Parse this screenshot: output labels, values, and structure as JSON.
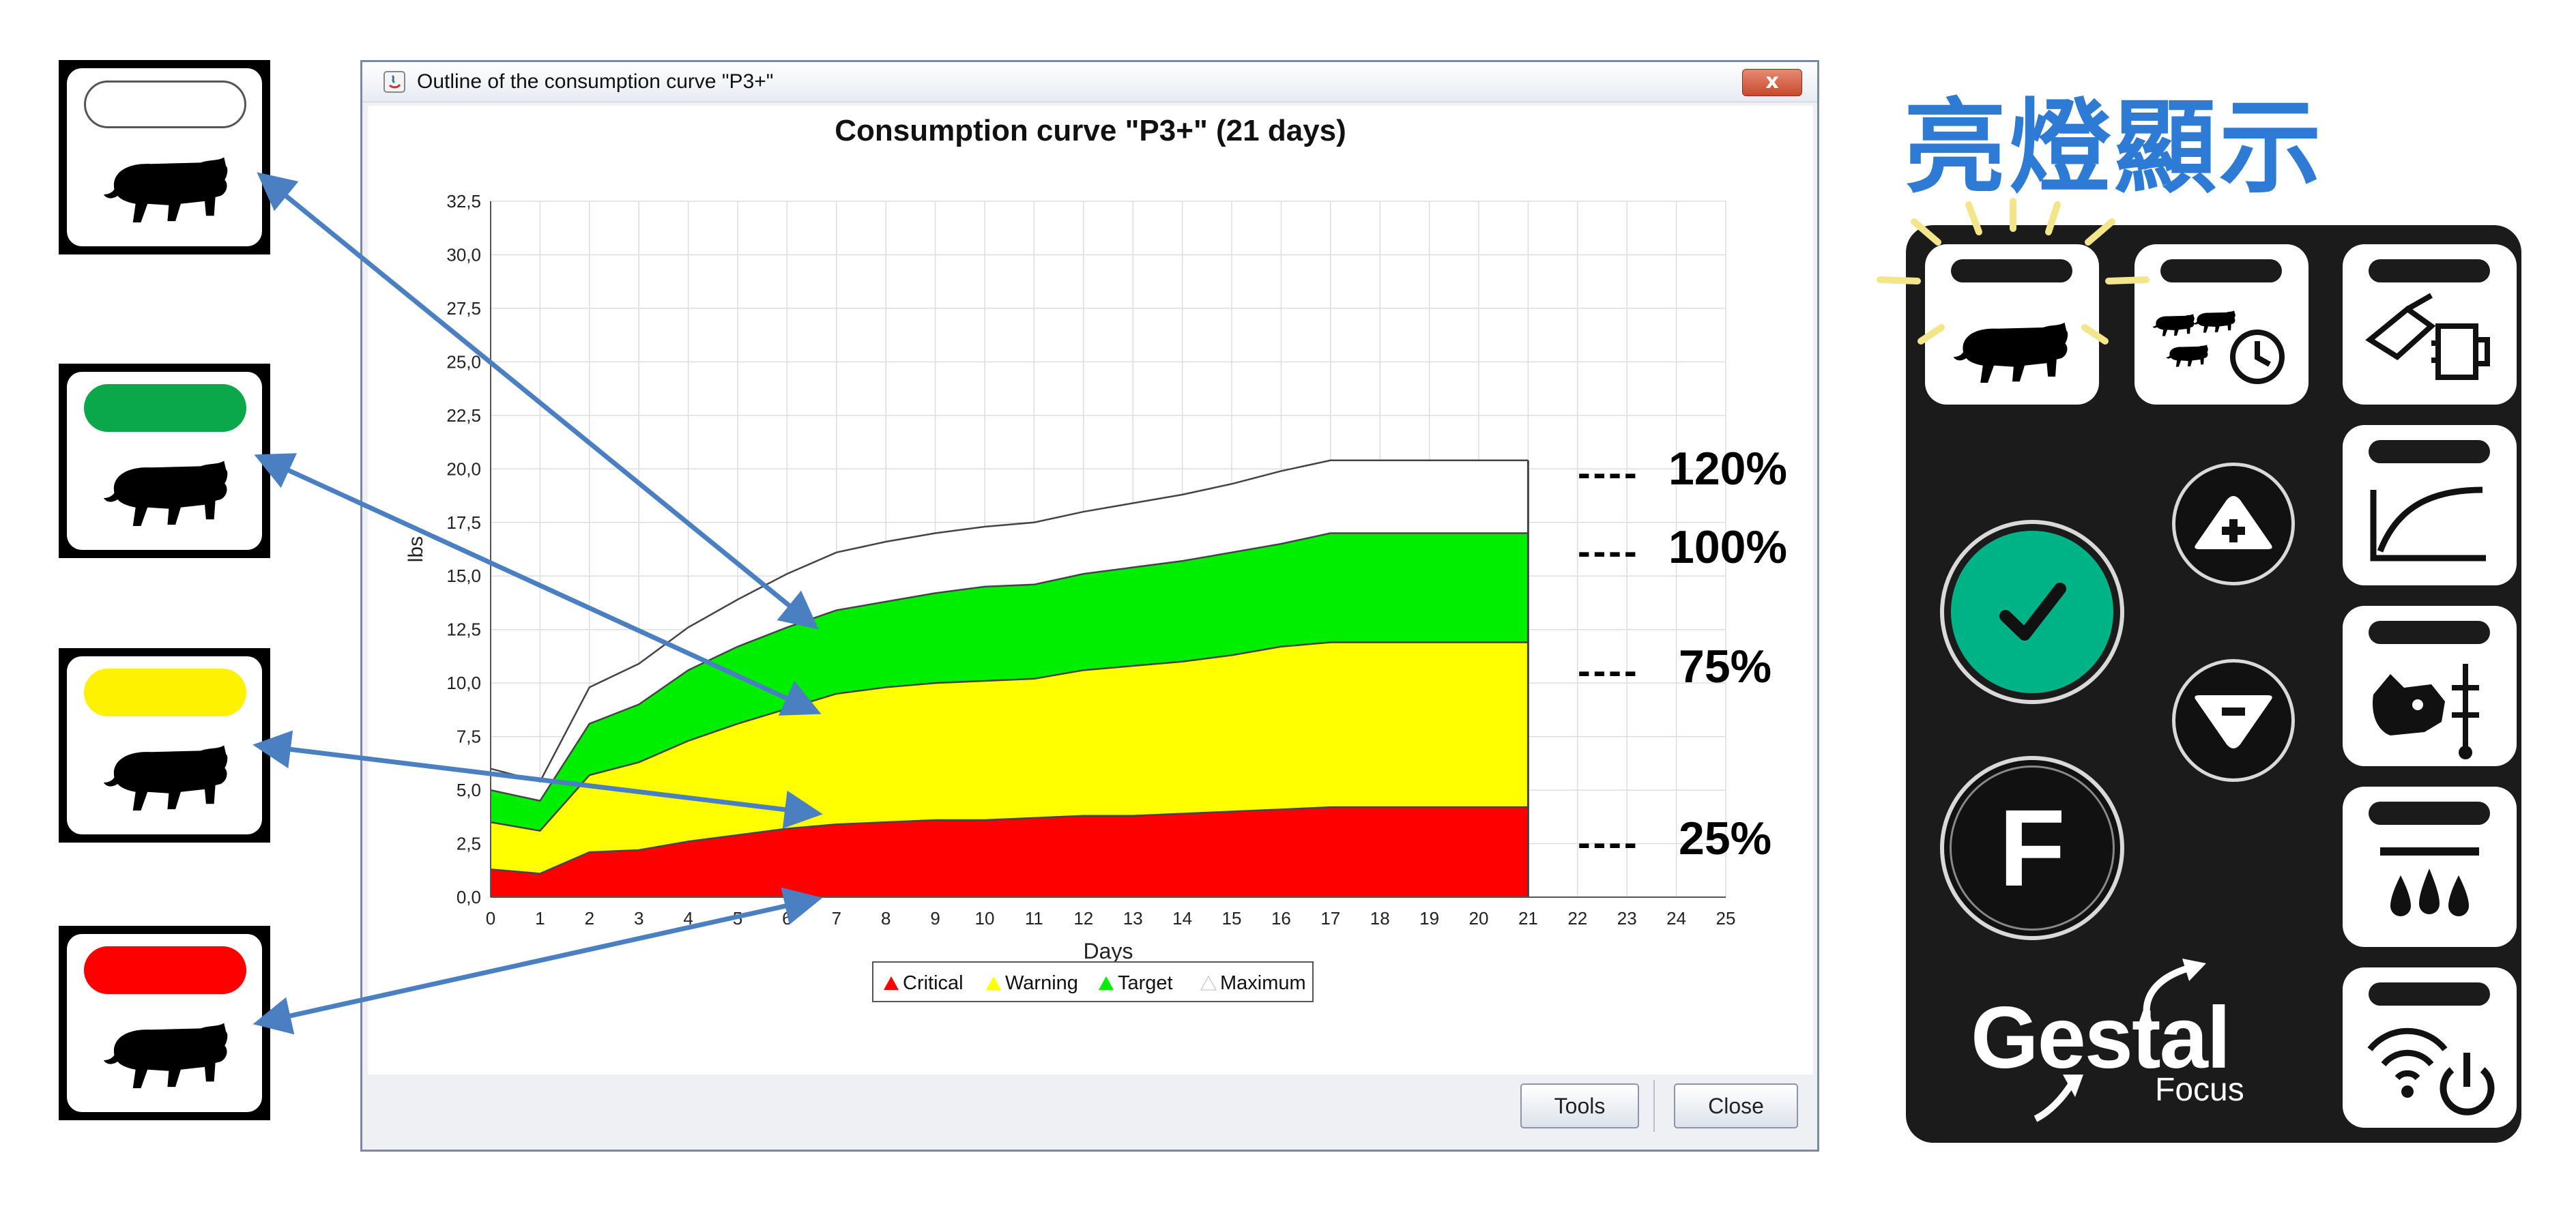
{
  "indicators": [
    {
      "label": "white",
      "lamp_color": "#ffffff",
      "icon": "pig-icon"
    },
    {
      "label": "green",
      "lamp_color": "#0aa84a",
      "icon": "pig-icon"
    },
    {
      "label": "yellow",
      "lamp_color": "#fff200",
      "icon": "pig-icon"
    },
    {
      "label": "red",
      "lamp_color": "#ff0000",
      "icon": "pig-icon"
    }
  ],
  "window": {
    "title": "Outline of the consumption curve \"P3+\"",
    "close_label": "x",
    "tools_label": "Tools",
    "close_button_label": "Close"
  },
  "chart_data": {
    "type": "area",
    "title": "Consumption curve \"P3+\" (21 days)",
    "xlabel": "Days",
    "ylabel": "lbs",
    "xlim": [
      0,
      25
    ],
    "ylim": [
      0,
      32.5
    ],
    "x_ticks": [
      "0",
      "1",
      "2",
      "3",
      "4",
      "5",
      "6",
      "7",
      "8",
      "9",
      "10",
      "11",
      "12",
      "13",
      "14",
      "15",
      "16",
      "17",
      "18",
      "19",
      "20",
      "21",
      "22",
      "23",
      "24",
      "25"
    ],
    "y_ticks": [
      "0,0",
      "2,5",
      "5,0",
      "7,5",
      "10,0",
      "12,5",
      "15,0",
      "17,5",
      "20,0",
      "22,5",
      "25,0",
      "27,5",
      "30,0",
      "32,5"
    ],
    "x": [
      0,
      1,
      2,
      3,
      4,
      5,
      6,
      7,
      8,
      9,
      10,
      11,
      12,
      13,
      14,
      15,
      16,
      17,
      18,
      19,
      20,
      21
    ],
    "series": [
      {
        "name": "Critical",
        "color": "#ff0000",
        "values": [
          1.3,
          1.1,
          2.1,
          2.2,
          2.6,
          2.9,
          3.2,
          3.4,
          3.5,
          3.6,
          3.6,
          3.7,
          3.8,
          3.8,
          3.9,
          4.0,
          4.1,
          4.2,
          4.2,
          4.2,
          4.2,
          4.2
        ]
      },
      {
        "name": "Warning",
        "color": "#ffff00",
        "values": [
          3.5,
          3.1,
          5.7,
          6.3,
          7.3,
          8.1,
          8.8,
          9.5,
          9.8,
          10.0,
          10.1,
          10.2,
          10.6,
          10.8,
          11.0,
          11.3,
          11.7,
          11.9,
          11.9,
          11.9,
          11.9,
          11.9
        ]
      },
      {
        "name": "Target",
        "color": "#00ee00",
        "values": [
          5.0,
          4.5,
          8.1,
          9.0,
          10.6,
          11.7,
          12.6,
          13.4,
          13.8,
          14.2,
          14.5,
          14.6,
          15.1,
          15.4,
          15.7,
          16.1,
          16.5,
          17.0,
          17.0,
          17.0,
          17.0,
          17.0
        ]
      },
      {
        "name": "Maximum",
        "color": "#ffffff",
        "values": [
          6.0,
          5.4,
          9.8,
          10.9,
          12.6,
          13.9,
          15.1,
          16.1,
          16.6,
          17.0,
          17.3,
          17.5,
          18.0,
          18.4,
          18.8,
          19.3,
          19.9,
          20.4,
          20.4,
          20.4,
          20.4,
          20.4
        ]
      }
    ],
    "legend_position": "bottom-center",
    "grid": true
  },
  "levels": [
    {
      "dashes": "----",
      "label": "120%"
    },
    {
      "dashes": "----",
      "label": "100%"
    },
    {
      "dashes": "----",
      "label": "75%"
    },
    {
      "dashes": "----",
      "label": "25%"
    }
  ],
  "heading": "亮燈顯示",
  "panel": {
    "brand": "Gestal",
    "sub_brand": "Focus",
    "f_label": "F",
    "buttons": [
      {
        "icon": "pig-icon",
        "lit": true
      },
      {
        "icon": "pigs-clock-icon",
        "lit": false
      },
      {
        "icon": "feeder-scoop-icon",
        "lit": false
      },
      {
        "icon": "curve-icon",
        "lit": false
      },
      {
        "icon": "pig-head-probe-icon",
        "lit": false
      },
      {
        "icon": "water-drops-icon",
        "lit": false
      },
      {
        "icon": "wifi-power-icon",
        "lit": false
      }
    ],
    "check_color": "#00b386"
  }
}
